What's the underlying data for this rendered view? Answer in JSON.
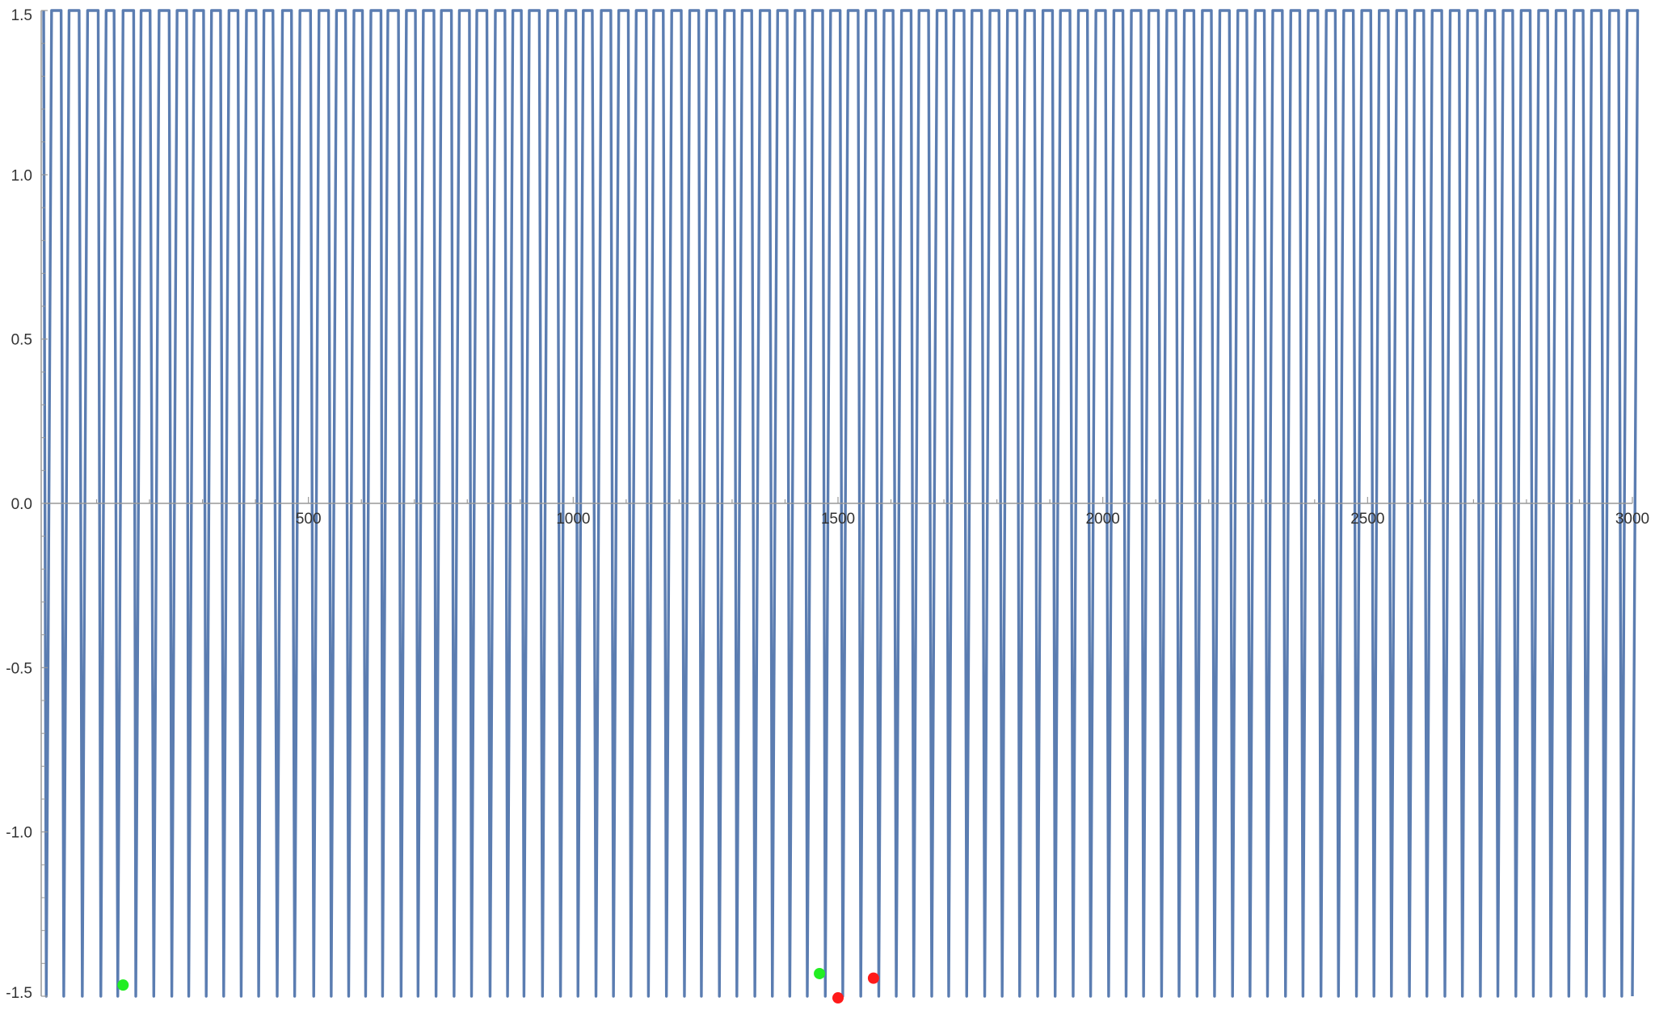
{
  "chart_data": {
    "type": "line",
    "title": "",
    "xlabel": "",
    "ylabel": "",
    "xlim": [
      0,
      3000
    ],
    "ylim": [
      -1.5,
      1.5
    ],
    "x_ticks": [
      500,
      1000,
      1500,
      2000,
      2500,
      3000
    ],
    "x_tick_labels": [
      "500",
      "1000",
      "1500",
      "2000",
      "2500",
      "3000"
    ],
    "y_ticks": [
      -1.5,
      -1.0,
      -0.5,
      0.0,
      0.5,
      1.0,
      1.5
    ],
    "y_tick_labels": [
      "-1.5",
      "-1.0",
      "-0.5",
      "0.0",
      "0.5",
      "1.0",
      "1.5"
    ],
    "grid": false,
    "colors": {
      "line": "#5B7DB1",
      "axis": "#999999",
      "green_marker": "#22EE22",
      "red_marker": "#FF1A1A"
    },
    "series": [
      {
        "style": "oscillating",
        "cycles": [
          [
            0,
            5,
            15
          ],
          [
            33,
            38,
            48
          ],
          [
            67,
            73,
            83
          ],
          [
            103,
            108,
            118
          ],
          [
            133,
            140,
            150
          ],
          [
            170,
            174,
            184
          ],
          [
            201,
            208,
            218
          ],
          [
            237,
            242,
            252
          ],
          [
            270,
            274,
            284
          ],
          [
            302,
            307,
            317
          ],
          [
            334,
            340,
            350
          ],
          [
            367,
            373,
            383
          ],
          [
            401,
            406,
            416
          ],
          [
            433,
            441,
            451
          ],
          [
            468,
            474,
            484
          ],
          [
            504,
            510,
            520
          ],
          [
            538,
            543,
            553
          ],
          [
            570,
            576,
            586
          ],
          [
            602,
            608,
            618
          ],
          [
            637,
            640,
            650
          ],
          [
            670,
            675,
            685
          ],
          [
            702,
            707,
            717
          ],
          [
            737,
            741,
            751
          ],
          [
            770,
            775,
            785
          ],
          [
            804,
            808,
            818
          ],
          [
            837,
            843,
            853
          ],
          [
            871,
            876,
            886
          ],
          [
            902,
            907,
            917
          ],
          [
            936,
            942,
            952
          ],
          [
            970,
            976,
            986
          ],
          [
            1005,
            1009,
            1019
          ],
          [
            1036,
            1043,
            1053
          ],
          [
            1071,
            1076,
            1086
          ],
          [
            1104,
            1109,
            1119
          ],
          [
            1138,
            1142,
            1152
          ],
          [
            1170,
            1176,
            1186
          ],
          [
            1204,
            1210,
            1220
          ],
          [
            1237,
            1242,
            1252
          ],
          [
            1270,
            1276,
            1286
          ],
          [
            1304,
            1309,
            1319
          ],
          [
            1337,
            1343,
            1353
          ],
          [
            1371,
            1376,
            1386
          ],
          [
            1404,
            1409,
            1419
          ],
          [
            1437,
            1442,
            1452
          ],
          [
            1471,
            1476,
            1486
          ],
          [
            1504,
            1509,
            1519
          ],
          [
            1538,
            1543,
            1553
          ],
          [
            1571,
            1577,
            1587
          ],
          [
            1604,
            1610,
            1620
          ],
          [
            1638,
            1643,
            1653
          ],
          [
            1671,
            1677,
            1687
          ],
          [
            1704,
            1709,
            1719
          ],
          [
            1738,
            1743,
            1753
          ],
          [
            1771,
            1777,
            1787
          ],
          [
            1804,
            1810,
            1820
          ],
          [
            1838,
            1843,
            1853
          ],
          [
            1871,
            1877,
            1887
          ],
          [
            1905,
            1910,
            1920
          ],
          [
            1938,
            1944,
            1954
          ],
          [
            1971,
            1977,
            1987
          ],
          [
            2005,
            2011,
            2021
          ],
          [
            2038,
            2044,
            2054
          ],
          [
            2072,
            2077,
            2087
          ],
          [
            2105,
            2111,
            2121
          ],
          [
            2138,
            2144,
            2154
          ],
          [
            2172,
            2178,
            2188
          ],
          [
            2205,
            2211,
            2221
          ],
          [
            2239,
            2245,
            2255
          ],
          [
            2272,
            2278,
            2288
          ],
          [
            2305,
            2311,
            2321
          ],
          [
            2339,
            2345,
            2355
          ],
          [
            2372,
            2378,
            2388
          ],
          [
            2406,
            2412,
            2422
          ],
          [
            2439,
            2445,
            2455
          ],
          [
            2473,
            2479,
            2489
          ],
          [
            2506,
            2512,
            2522
          ],
          [
            2539,
            2545,
            2555
          ],
          [
            2573,
            2579,
            2589
          ],
          [
            2606,
            2612,
            2622
          ],
          [
            2640,
            2646,
            2656
          ],
          [
            2673,
            2679,
            2689
          ],
          [
            2707,
            2713,
            2723
          ],
          [
            2740,
            2746,
            2756
          ],
          [
            2774,
            2780,
            2790
          ],
          [
            2807,
            2813,
            2823
          ],
          [
            2840,
            2846,
            2856
          ],
          [
            2874,
            2880,
            2890
          ],
          [
            2907,
            2913,
            2923
          ],
          [
            2941,
            2947,
            2957
          ],
          [
            2974,
            2980,
            2990
          ]
        ]
      },
      {
        "name": "",
        "style": "markers",
        "color": "#22EE22",
        "points": [
          [
            150,
            -1.466
          ],
          [
            1465,
            -1.431
          ]
        ]
      },
      {
        "name": "",
        "style": "markers",
        "color": "#FF1A1A",
        "points": [
          [
            1567,
            -1.445
          ],
          [
            1500,
            -1.505
          ]
        ]
      }
    ]
  }
}
